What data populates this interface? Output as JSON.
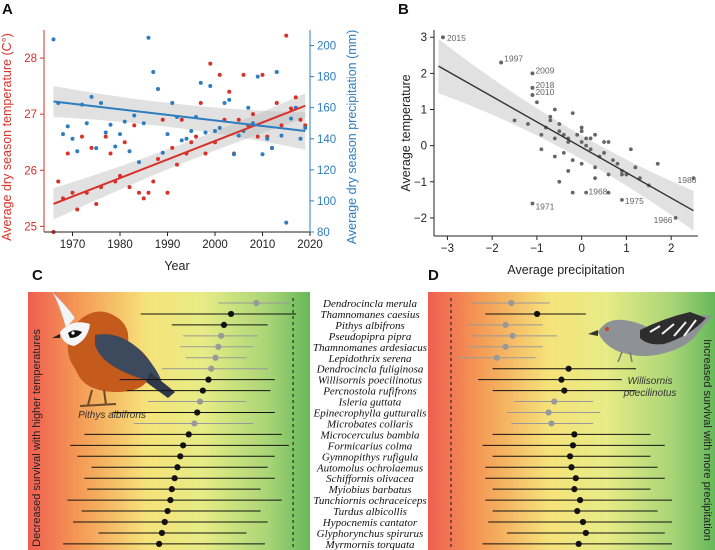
{
  "panels": {
    "a": "A",
    "b": "B",
    "c": "C",
    "d": "D"
  },
  "colors": {
    "temperature": "#d7312a",
    "precipitation": "#2e7dbf",
    "scatter_b": "#666666",
    "estimate_light": "#999999",
    "estimate_dark": "#111111"
  },
  "chart_data": [
    {
      "panel": "A",
      "type": "scatter",
      "xlabel": "Year",
      "ylabel": "Average dry season temperature (C°)",
      "ylabel_right": "Average dry season precipitation (mm)",
      "xlim": [
        1964,
        2020
      ],
      "ylim": [
        24.9,
        28.5
      ],
      "ylim_right": [
        80,
        210
      ],
      "xticks": [
        1970,
        1980,
        1990,
        2000,
        2010,
        2020
      ],
      "yticks": [
        25,
        26,
        27,
        28
      ],
      "yticks_right": [
        80,
        100,
        120,
        140,
        160,
        180,
        200
      ],
      "series": [
        {
          "name": "temperature",
          "axis": "left",
          "x": [
            1966,
            1967,
            1968,
            1969,
            1970,
            1971,
            1972,
            1973,
            1974,
            1975,
            1976,
            1977,
            1978,
            1979,
            1980,
            1981,
            1982,
            1983,
            1984,
            1985,
            1986,
            1987,
            1988,
            1989,
            1990,
            1991,
            1992,
            1993,
            1994,
            1995,
            1996,
            1997,
            1998,
            1999,
            2000,
            2001,
            2002,
            2003,
            2004,
            2005,
            2006,
            2007,
            2008,
            2009,
            2010,
            2011,
            2012,
            2013,
            2014,
            2015,
            2016,
            2017,
            2018,
            2019
          ],
          "values": [
            24.9,
            25.8,
            25.5,
            26.3,
            25.6,
            25.3,
            26.6,
            25.6,
            26.4,
            25.4,
            25.7,
            26.6,
            26.3,
            25.8,
            25.9,
            26.5,
            25.7,
            26.8,
            25.6,
            25.5,
            25.6,
            25.8,
            26.2,
            26.9,
            25.6,
            26.4,
            26.1,
            26.9,
            26.3,
            26.5,
            26.6,
            27.2,
            26.3,
            27.9,
            26.5,
            27.7,
            26.9,
            27.4,
            26.3,
            26.9,
            27.7,
            26.8,
            27.0,
            26.6,
            27.7,
            26.6,
            26.4,
            27.2,
            26.8,
            28.4,
            27.1,
            27.3,
            26.9,
            26.8
          ]
        },
        {
          "name": "precipitation",
          "axis": "right",
          "x": [
            1966,
            1967,
            1968,
            1969,
            1970,
            1971,
            1972,
            1973,
            1974,
            1975,
            1976,
            1977,
            1978,
            1979,
            1980,
            1981,
            1982,
            1983,
            1984,
            1985,
            1986,
            1987,
            1988,
            1989,
            1990,
            1991,
            1992,
            1993,
            1994,
            1995,
            1996,
            1997,
            1998,
            1999,
            2000,
            2001,
            2002,
            2003,
            2004,
            2005,
            2006,
            2007,
            2008,
            2009,
            2010,
            2011,
            2012,
            2013,
            2014,
            2015,
            2016,
            2017,
            2018,
            2019
          ],
          "values": [
            204,
            163,
            143,
            148,
            140,
            132,
            162,
            150,
            167,
            134,
            163,
            144,
            149,
            135,
            143,
            151,
            132,
            155,
            125,
            150,
            205,
            183,
            172,
            131,
            143,
            163,
            154,
            139,
            140,
            145,
            154,
            176,
            144,
            174,
            145,
            147,
            163,
            165,
            130,
            142,
            145,
            160,
            150,
            180,
            130,
            140,
            134,
            183,
            142,
            86,
            153,
            160,
            140,
            147
          ]
        }
      ],
      "trends": [
        {
          "name": "temperature",
          "x": [
            1966,
            2019
          ],
          "values": [
            25.4,
            27.15
          ],
          "ci": [
            0.28,
            0.22
          ]
        },
        {
          "name": "precipitation",
          "x": [
            1966,
            2019
          ],
          "values": [
            164,
            145
          ],
          "ci": [
            10,
            12
          ]
        }
      ]
    },
    {
      "panel": "B",
      "type": "scatter",
      "xlabel": "Average precipitation",
      "ylabel": "Average temperature",
      "xlim": [
        -3.3,
        2.6
      ],
      "ylim": [
        -2.5,
        3.2
      ],
      "xticks": [
        -3,
        -2,
        -1,
        0,
        1,
        2
      ],
      "yticks": [
        -2,
        -1,
        0,
        1,
        2,
        3
      ],
      "x": [
        -3.1,
        -1.8,
        -1.1,
        -1.1,
        -1.1,
        -1.0,
        -0.2,
        0.1,
        -1.5,
        -1.2,
        -0.9,
        -0.8,
        -0.7,
        -0.6,
        -0.6,
        -0.5,
        -0.5,
        -0.4,
        -0.3,
        -0.3,
        -0.2,
        -0.1,
        0.0,
        0.0,
        0.1,
        0.1,
        0.2,
        0.2,
        0.3,
        0.4,
        0.5,
        0.6,
        0.7,
        0.8,
        0.9,
        1.0,
        1.2,
        1.3,
        1.5,
        1.7,
        -0.7,
        -0.4,
        -0.2,
        0.0,
        0.3,
        0.6,
        -0.6,
        0.3,
        0.9,
        -0.9,
        -0.5,
        0.0,
        0.5,
        1.1,
        -0.3
      ],
      "y": [
        3.0,
        2.3,
        2.0,
        1.6,
        1.4,
        1.2,
        -1.3,
        -1.3,
        0.7,
        0.6,
        0.3,
        0.5,
        0.8,
        1.0,
        0.2,
        0.4,
        0.6,
        0.3,
        0.1,
        0.2,
        0.9,
        0.3,
        0.4,
        0.1,
        0.2,
        0.0,
        -0.1,
        0.2,
        0.3,
        -0.3,
        -0.2,
        0.1,
        -0.4,
        -0.5,
        -0.7,
        -0.8,
        -0.6,
        -0.9,
        -1.1,
        -0.5,
        0.7,
        -0.2,
        -0.4,
        -0.5,
        -0.6,
        -0.8,
        -0.3,
        -0.9,
        -0.8,
        -0.1,
        -1.0,
        0.5,
        0.1,
        -0.1,
        -0.7
      ],
      "labeled_points": [
        {
          "label": "2015",
          "x": -3.1,
          "y": 3.0
        },
        {
          "label": "1997",
          "x": -1.8,
          "y": 2.3
        },
        {
          "label": "2009",
          "x": -1.1,
          "y": 2.0
        },
        {
          "label": "2018",
          "x": -1.1,
          "y": 1.6
        },
        {
          "label": "2010",
          "x": -1.1,
          "y": 1.4
        },
        {
          "label": "1971",
          "x": -1.1,
          "y": -1.6
        },
        {
          "label": "1968",
          "x": 0.6,
          "y": -1.3
        },
        {
          "label": "1975",
          "x": 0.9,
          "y": -1.5
        },
        {
          "label": "1966",
          "x": 2.1,
          "y": -2.0
        },
        {
          "label": "1986",
          "x": 2.5,
          "y": -0.9
        }
      ],
      "trend": {
        "x": [
          -3.2,
          2.5
        ],
        "values": [
          2.2,
          -1.8
        ],
        "ci_ends": [
          0.75,
          0.55
        ],
        "ci_mid": 0.12
      }
    },
    {
      "panel": "C",
      "type": "scatter",
      "xlabel": "",
      "ylabel": "Decreased survival with higher temperatures",
      "xlim": [
        -1,
        1
      ],
      "reference_line": 0.88,
      "bird_caption": "Pithys albifrons",
      "species": [
        "Dendrocincla merula",
        "Thamnomanes caesius",
        "Pithys albifrons",
        "Pseudopipra pipra",
        "Thamnomanes ardesiacus",
        "Lepidothrix serena",
        "Dendrocincla fuliginosa",
        "Willisornis poecilinotus",
        "Percnostola rufifrons",
        "Isleria guttata",
        "Epinecrophylla gutturalis",
        "Microbates collaris",
        "Microcerculus bambla",
        "Formicarius colma",
        "Gymnopithys rufigula",
        "Automolus ochrolaemus",
        "Schiffornis olivacea",
        "Myiobius barbatus",
        "Tunchiornis ochraceiceps",
        "Turdus albicollis",
        "Hypocnemis cantator",
        "Glyphorynchus spirurus",
        "Myrmornis torquata"
      ],
      "estimates": [
        0.62,
        0.44,
        0.39,
        0.37,
        0.35,
        0.33,
        0.3,
        0.28,
        0.24,
        0.22,
        0.2,
        0.18,
        0.14,
        0.1,
        0.08,
        0.06,
        0.04,
        0.02,
        0.01,
        -0.01,
        -0.03,
        -0.05,
        -0.07
      ],
      "ci_low": [
        0.35,
        -0.2,
        0.02,
        0.1,
        0.08,
        0.12,
        -0.05,
        -0.35,
        -0.3,
        -0.15,
        -0.4,
        -0.25,
        -0.6,
        -0.7,
        -0.65,
        -0.55,
        -0.6,
        -0.58,
        -0.72,
        -0.62,
        -0.68,
        -0.5,
        -0.75
      ],
      "ci_high": [
        0.85,
        0.9,
        0.7,
        0.63,
        0.6,
        0.55,
        0.7,
        0.75,
        0.72,
        0.55,
        0.75,
        0.6,
        0.8,
        0.85,
        0.75,
        0.7,
        0.75,
        0.65,
        0.8,
        0.65,
        0.7,
        0.55,
        0.68
      ],
      "highlight": [
        false,
        true,
        true,
        false,
        false,
        false,
        false,
        true,
        true,
        false,
        true,
        false,
        true,
        true,
        true,
        true,
        true,
        true,
        true,
        true,
        true,
        true,
        true
      ]
    },
    {
      "panel": "D",
      "type": "scatter",
      "xlabel": "",
      "ylabel": "Increased survival with more precipitation",
      "xlim": [
        -1,
        1
      ],
      "reference_line": -0.84,
      "bird_caption": "Willisornis poecilinotus",
      "estimates": [
        -0.42,
        -0.24,
        -0.46,
        -0.41,
        -0.46,
        -0.52,
        -0.02,
        -0.07,
        -0.05,
        -0.12,
        -0.16,
        -0.14,
        0.02,
        0.01,
        -0.01,
        0.0,
        0.03,
        0.02,
        0.06,
        0.04,
        0.08,
        0.1,
        0.05
      ],
      "ci_low": [
        -0.7,
        -0.6,
        -0.72,
        -0.7,
        -0.72,
        -0.8,
        -0.55,
        -0.65,
        -0.55,
        -0.4,
        -0.45,
        -0.42,
        -0.55,
        -0.62,
        -0.55,
        -0.6,
        -0.6,
        -0.55,
        -0.6,
        -0.55,
        -0.58,
        -0.45,
        -0.62
      ],
      "ci_high": [
        -0.15,
        0.1,
        -0.2,
        -0.1,
        -0.2,
        -0.25,
        0.45,
        0.35,
        0.45,
        0.15,
        0.2,
        0.15,
        0.55,
        0.65,
        0.55,
        0.6,
        0.65,
        0.55,
        0.7,
        0.6,
        0.7,
        0.65,
        0.7
      ],
      "highlight": [
        false,
        true,
        false,
        false,
        false,
        false,
        true,
        true,
        true,
        false,
        false,
        false,
        true,
        true,
        true,
        true,
        true,
        true,
        true,
        true,
        true,
        true,
        true
      ]
    }
  ]
}
